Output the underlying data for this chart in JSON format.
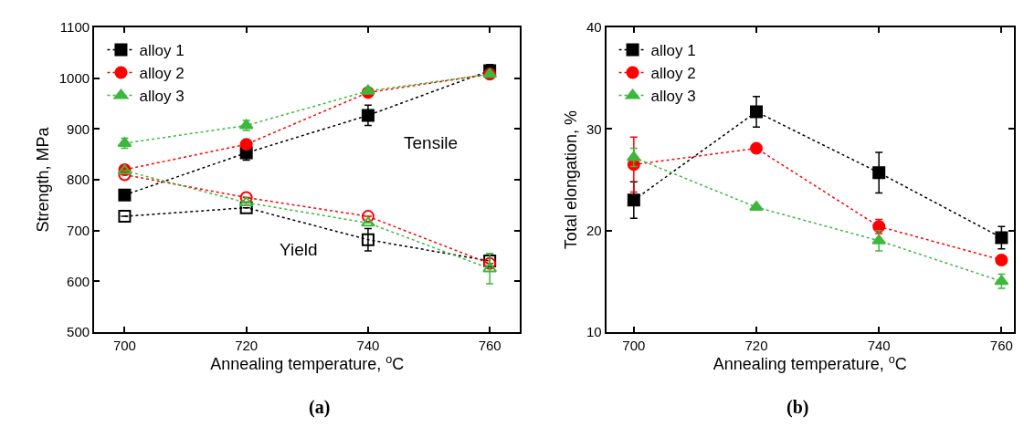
{
  "chart_data": [
    {
      "type": "line",
      "xlabel": "Annealing temperature, $^{o}$C",
      "ylabel": "Strength, MPa",
      "x": [
        700,
        720,
        740,
        760
      ],
      "xlim": [
        695,
        765
      ],
      "xticks": [
        700,
        720,
        740,
        760
      ],
      "ylim": [
        500,
        1100
      ],
      "yticks": [
        500,
        600,
        700,
        800,
        900,
        1000,
        1100
      ],
      "legend": "top left",
      "line_style": "dotted",
      "series": [
        {
          "color": "#000000",
          "marker": "square-open",
          "values": [
            728,
            745,
            682,
            640
          ],
          "errors": [
            null,
            null,
            22,
            12
          ]
        },
        {
          "name": "alloy 1",
          "color": "#000000",
          "marker": "square",
          "values": [
            770,
            853,
            927,
            1015
          ],
          "errors": [
            null,
            14,
            20,
            12
          ]
        },
        {
          "color": "#ff0000",
          "marker": "circle-open",
          "values": [
            810,
            765,
            728,
            635
          ],
          "errors": [
            null,
            null,
            null,
            null
          ]
        },
        {
          "name": "alloy 2",
          "color": "#ff0000",
          "marker": "circle",
          "values": [
            820,
            870,
            972,
            1008
          ],
          "errors": [
            null,
            null,
            null,
            null
          ]
        },
        {
          "color": "#3cb83c",
          "marker": "triangle-open",
          "values": [
            818,
            755,
            715,
            625
          ],
          "errors": [
            null,
            null,
            null,
            30
          ]
        },
        {
          "name": "alloy 3",
          "color": "#3cb83c",
          "marker": "triangle",
          "values": [
            872,
            907,
            975,
            1008
          ],
          "errors": [
            10,
            10,
            null,
            null
          ]
        }
      ],
      "annotations": [
        "Tensile",
        "Yield",
        "(a)"
      ]
    },
    {
      "type": "line",
      "xlabel": "Annealing temperature, $^{o}$C",
      "ylabel": "Total elongation, %",
      "x": [
        700,
        720,
        740,
        760
      ],
      "xlim": [
        695.5,
        762
      ],
      "xticks": [
        700,
        720,
        740,
        760
      ],
      "ylim": [
        10,
        40
      ],
      "yticks": [
        10,
        20,
        30,
        40
      ],
      "legend": "top left",
      "line_style": "dotted",
      "series": [
        {
          "name": "alloy 1",
          "color": "#000000",
          "marker": "square",
          "values": [
            23,
            31.7,
            25.7,
            19.3
          ],
          "errors": [
            1.8,
            1.5,
            2,
            1.1
          ]
        },
        {
          "name": "alloy 2",
          "color": "#ff0000",
          "marker": "circle",
          "values": [
            26.5,
            28.1,
            20.4,
            17.1
          ],
          "errors": [
            2.7,
            null,
            0.7,
            null
          ]
        },
        {
          "name": "alloy 3",
          "color": "#3cb83c",
          "marker": "triangle",
          "values": [
            27.2,
            22.3,
            19,
            15
          ],
          "errors": [
            0.9,
            null,
            1,
            0.7
          ]
        }
      ],
      "annotations": [
        "(b)"
      ]
    }
  ]
}
